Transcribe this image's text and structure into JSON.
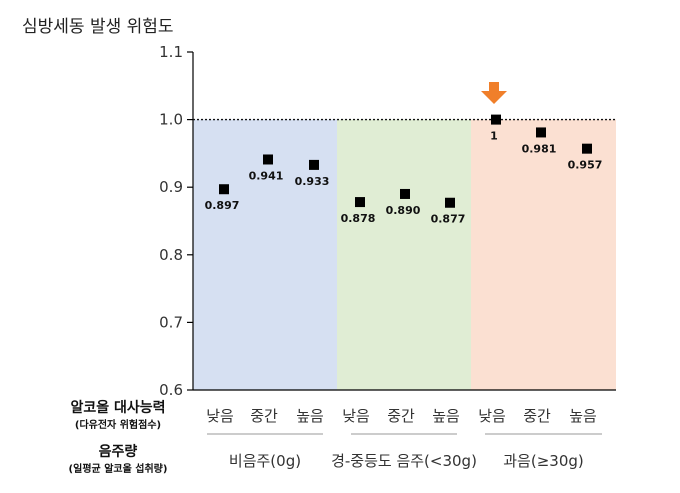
{
  "chart_data": {
    "type": "scatter",
    "title": "심방세동 발생 위험도",
    "ylim": [
      0.6,
      1.1
    ],
    "yticks": [
      "0.6",
      "0.7",
      "0.8",
      "0.9",
      "1.0",
      "1.1"
    ],
    "reference_line": 1.0,
    "row_label_1": {
      "main": "알코올 대사능력",
      "sub": "(다유전자 위험점수)"
    },
    "row_label_2": {
      "main": "음주량",
      "sub": "(일평균 알코올 섭취량)"
    },
    "groups": [
      {
        "label": "비음주(0g)",
        "color": "#d6e0f2",
        "points": [
          {
            "category": "낮음",
            "value": 0.897,
            "label": "0.897"
          },
          {
            "category": "중간",
            "value": 0.941,
            "label": "0.941"
          },
          {
            "category": "높음",
            "value": 0.933,
            "label": "0.933"
          }
        ]
      },
      {
        "label": "경-중등도 음주(<30g)",
        "color": "#e0edd4",
        "points": [
          {
            "category": "낮음",
            "value": 0.878,
            "label": "0.878"
          },
          {
            "category": "중간",
            "value": 0.89,
            "label": "0.890"
          },
          {
            "category": "높음",
            "value": 0.877,
            "label": "0.877"
          }
        ]
      },
      {
        "label": "과음(≥30g)",
        "color": "#fbe0d2",
        "points": [
          {
            "category": "낮음",
            "value": 1.0,
            "label": "1"
          },
          {
            "category": "중간",
            "value": 0.981,
            "label": "0.981"
          },
          {
            "category": "높음",
            "value": 0.957,
            "label": "0.957"
          }
        ]
      }
    ],
    "reference_marker": {
      "shape": "down-arrow",
      "color": "#f07f2a",
      "group": 2,
      "point": 0
    }
  }
}
